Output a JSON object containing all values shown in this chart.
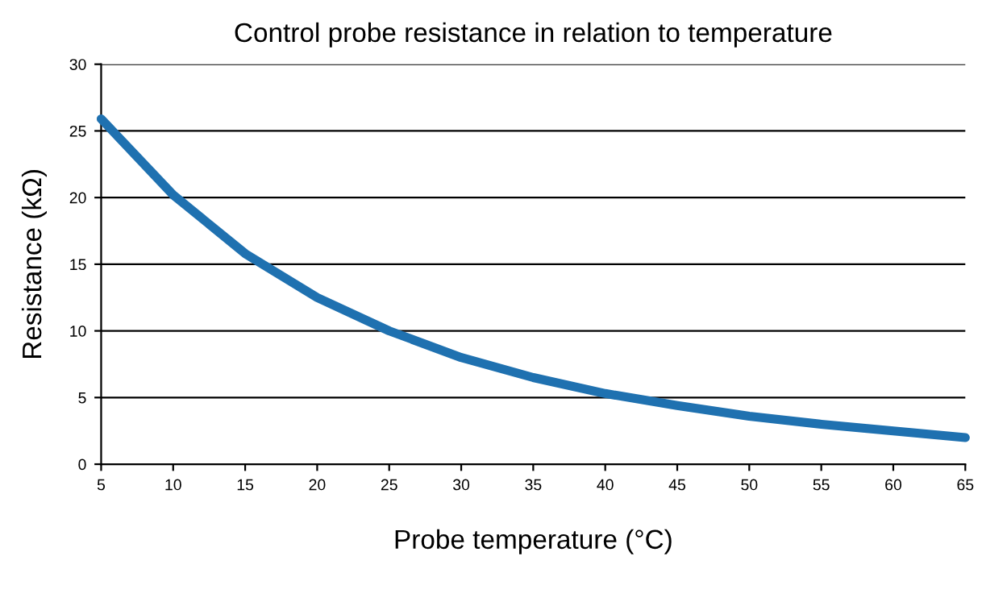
{
  "chart_data": {
    "type": "line",
    "title": "Control probe resistance in relation to temperature",
    "xlabel": "Probe temperature (°C)",
    "ylabel": "Resistance (kΩ)",
    "x": [
      5,
      10,
      15,
      20,
      25,
      30,
      35,
      40,
      45,
      50,
      55,
      60,
      65
    ],
    "series": [
      {
        "color": "#1f71b0",
        "values": [
          25.9,
          20.2,
          15.8,
          12.5,
          10.0,
          8.0,
          6.5,
          5.3,
          4.4,
          3.6,
          3.0,
          2.5,
          2.0
        ]
      }
    ],
    "xlim": [
      5,
      65
    ],
    "ylim": [
      0,
      30
    ],
    "xticks": [
      5,
      10,
      15,
      20,
      25,
      30,
      35,
      40,
      45,
      50,
      55,
      60,
      65
    ],
    "yticks": [
      0,
      5,
      10,
      15,
      20,
      25,
      30
    ],
    "grid": "y",
    "legend": false,
    "marker": "none",
    "line_style": "solid"
  }
}
